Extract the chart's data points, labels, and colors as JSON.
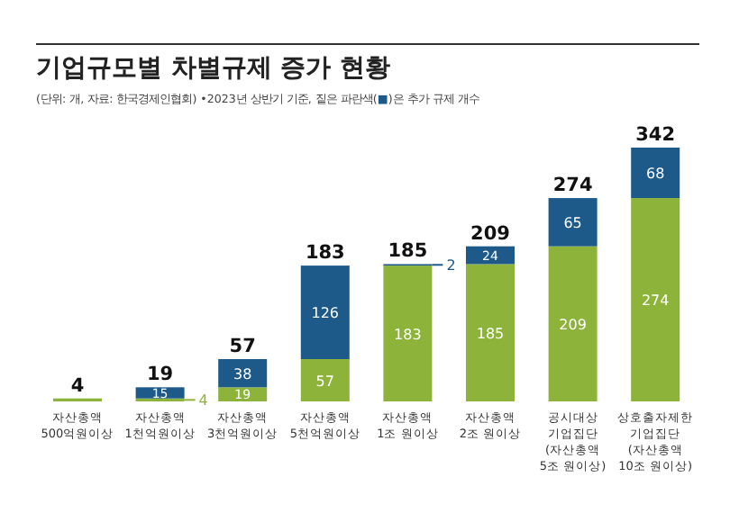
{
  "chart_data": {
    "type": "bar",
    "stacked": true,
    "title": "기업규모별 차별규제 증가 현황",
    "subtitle": "(단위: 개, 자료: 한국경제인협회) •2023년 상반기 기준, 짙은 파란색(■)은 추가 규제 개수",
    "categories": [
      "자산총액\n500억원이상",
      "자산총액\n1천억원이상",
      "자산총액\n3천억원이상",
      "자산총액\n5천억원이상",
      "자산총액\n1조 원이상",
      "자산총액\n2조 원이상",
      "공시대상\n기업집단\n(자산총액\n5조 원이상)",
      "상호출자제한\n기업집단\n(자산총액\n10조 원이상)"
    ],
    "series": [
      {
        "color": "#8db33a",
        "values": [
          4,
          4,
          19,
          57,
          183,
          185,
          209,
          274
        ],
        "value_labels": [
          null,
          "4",
          "19",
          "57",
          "183",
          "185",
          "209",
          "274"
        ]
      },
      {
        "color": "#1d5a8a",
        "values": [
          0,
          15,
          38,
          126,
          2,
          24,
          65,
          68
        ],
        "value_labels": [
          null,
          "15",
          "38",
          "126",
          "2",
          "24",
          "65",
          "68"
        ]
      }
    ],
    "totals": [
      "4",
      "19",
      "57",
      "183",
      "185",
      "209",
      "274",
      "342"
    ]
  }
}
